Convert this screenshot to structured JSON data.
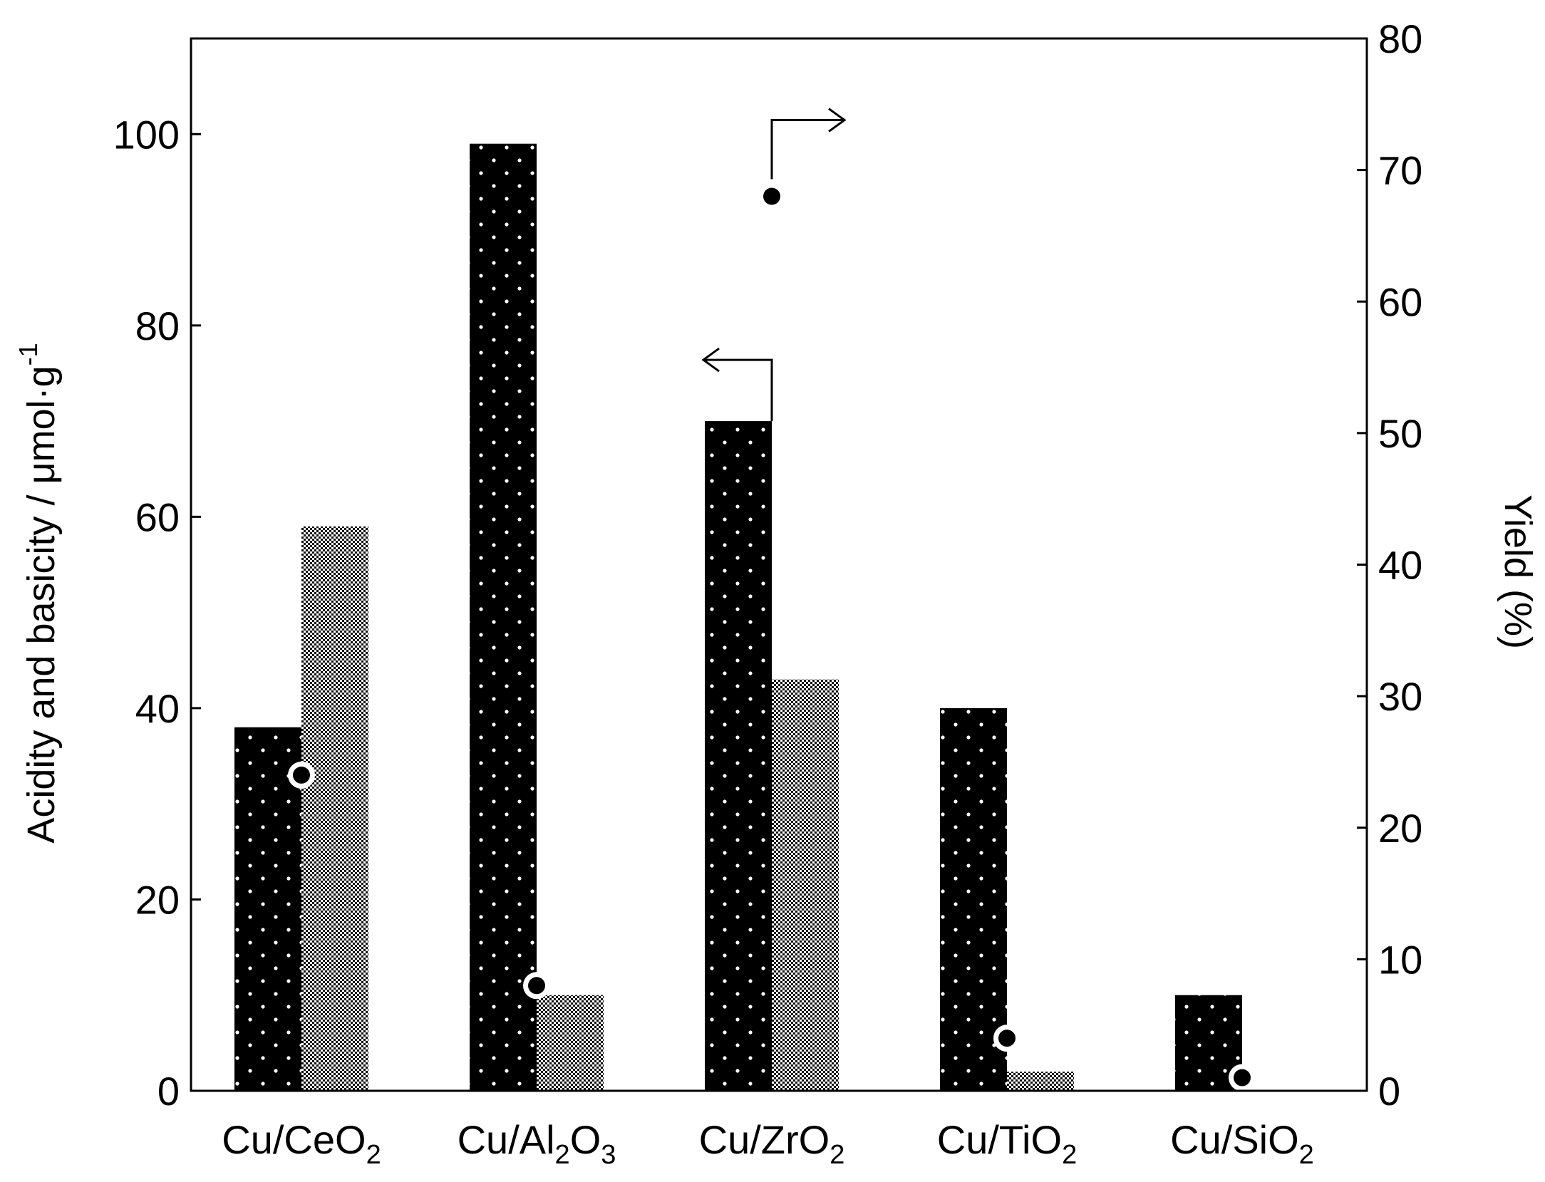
{
  "chart_data": {
    "type": "bar",
    "categories": [
      {
        "label": "Cu/CeO",
        "sub": [
          "2"
        ]
      },
      {
        "label": "Cu/Al",
        "sub": [
          "2",
          "3"
        ],
        "parts": [
          "Cu/Al",
          "2",
          "O",
          "3"
        ]
      },
      {
        "label": "Cu/ZrO",
        "sub": [
          "2"
        ]
      },
      {
        "label": "Cu/TiO",
        "sub": [
          "2"
        ]
      },
      {
        "label": "Cu/SiO",
        "sub": [
          "2"
        ]
      }
    ],
    "category_labels": [
      "Cu/CeO2",
      "Cu/Al2O3",
      "Cu/ZrO2",
      "Cu/TiO2",
      "Cu/SiO2"
    ],
    "series": [
      {
        "values": [
          38,
          99,
          70,
          40,
          10
        ],
        "axis": "left",
        "pattern": "black-dotted",
        "color": "#000000"
      },
      {
        "values": [
          59,
          10,
          43,
          2,
          0
        ],
        "axis": "left",
        "pattern": "gray-checkered",
        "color": "#8a8a8a"
      },
      {
        "values": [
          24,
          8,
          68,
          4,
          1
        ],
        "axis": "right",
        "marker": "circle",
        "color": "#000000"
      }
    ],
    "ylabel_left": "Acidity and basicity / μmol·g",
    "ylabel_left_sup": "-1",
    "ylabel_right": "Yield (%)",
    "ylim_left": [
      0,
      110
    ],
    "ylim_right": [
      0,
      80
    ],
    "yticks_left": [
      0,
      20,
      40,
      60,
      80,
      100
    ],
    "yticks_right": [
      0,
      10,
      20,
      30,
      40,
      50,
      60,
      70,
      80
    ],
    "grid": false,
    "legend": "none",
    "annotations": [
      {
        "type": "arrow-left",
        "series_index": 0,
        "category_index": 2
      },
      {
        "type": "arrow-right",
        "series_index": 2,
        "category_index": 2
      }
    ]
  }
}
